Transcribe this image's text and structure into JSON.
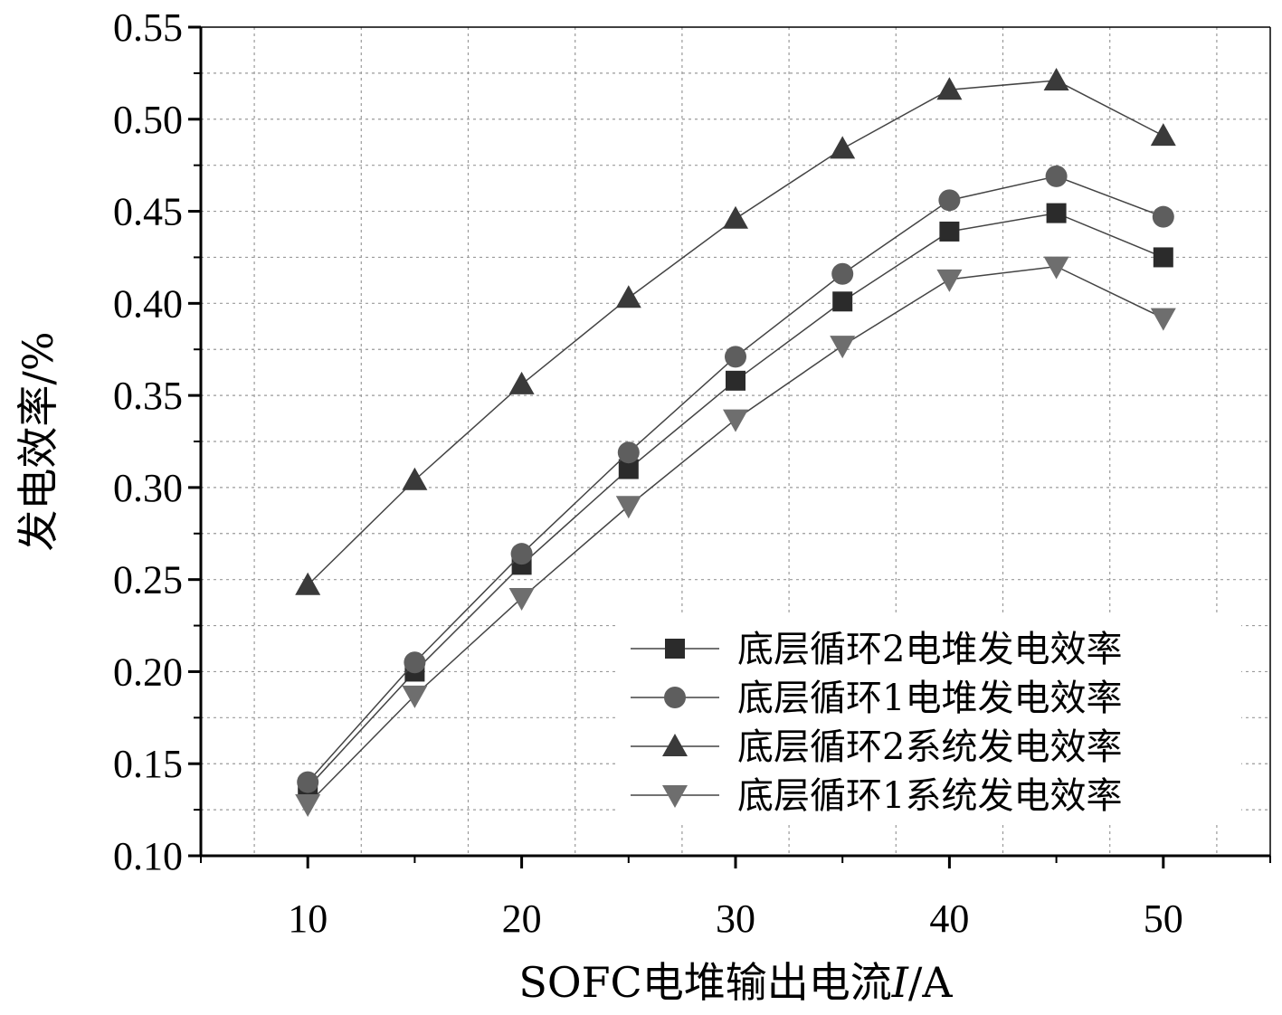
{
  "chart_data": {
    "type": "line",
    "title": "",
    "xlabel": {
      "prefix": "SOFC电堆输出电流",
      "italic": "I",
      "suffix": "/A"
    },
    "ylabel": "发电效率/%",
    "x": [
      10,
      15,
      20,
      25,
      30,
      35,
      40,
      45,
      50
    ],
    "xlim": [
      5,
      55
    ],
    "ylim": [
      0.1,
      0.55
    ],
    "x_ticks": [
      10,
      20,
      30,
      40,
      50
    ],
    "y_ticks": [
      "0.10",
      "0.15",
      "0.20",
      "0.25",
      "0.30",
      "0.35",
      "0.40",
      "0.45",
      "0.50",
      "0.55"
    ],
    "grid": true,
    "legend_position": "bottom-right",
    "series": [
      {
        "name": "底层循环2电堆发电效率",
        "marker": "square",
        "color": "#2b2b2b",
        "values": [
          0.137,
          0.2,
          0.258,
          0.31,
          0.358,
          0.401,
          0.439,
          0.449,
          0.425
        ]
      },
      {
        "name": "底层循环1电堆发电效率",
        "marker": "circle",
        "color": "#5e5e5e",
        "values": [
          0.14,
          0.205,
          0.264,
          0.319,
          0.371,
          0.416,
          0.456,
          0.469,
          0.447
        ]
      },
      {
        "name": "底层循环2系统发电效率",
        "marker": "triangle-up",
        "color": "#3a3a3a",
        "values": [
          0.247,
          0.304,
          0.356,
          0.403,
          0.446,
          0.484,
          0.516,
          0.521,
          0.491
        ]
      },
      {
        "name": "底层循环1系统发电效率",
        "marker": "triangle-down",
        "color": "#6e6e6e",
        "values": [
          0.128,
          0.187,
          0.24,
          0.29,
          0.337,
          0.377,
          0.413,
          0.42,
          0.392
        ]
      }
    ]
  }
}
